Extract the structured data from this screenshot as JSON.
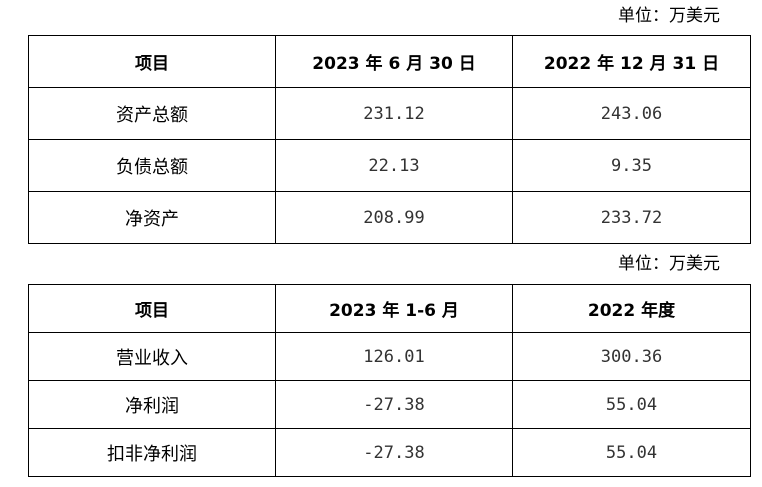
{
  "balance_sheet": {
    "unit": "单位：万美元",
    "headers": [
      "项目",
      "2023 年 6 月 30 日",
      "2022 年 12 月 31 日"
    ],
    "rows": [
      {
        "item": "资产总额",
        "v1": "231.12",
        "v2": "243.06"
      },
      {
        "item": "负债总额",
        "v1": "22.13",
        "v2": "9.35"
      },
      {
        "item": "净资产",
        "v1": "208.99",
        "v2": "233.72"
      }
    ]
  },
  "income_statement": {
    "unit": "单位：万美元",
    "headers": [
      "项目",
      "2023 年 1-6 月",
      "2022 年度"
    ],
    "rows": [
      {
        "item": "营业收入",
        "v1": "126.01",
        "v2": "300.36"
      },
      {
        "item": "净利润",
        "v1": "-27.38",
        "v2": "55.04"
      },
      {
        "item": "扣非净利润",
        "v1": "-27.38",
        "v2": "55.04"
      }
    ]
  }
}
